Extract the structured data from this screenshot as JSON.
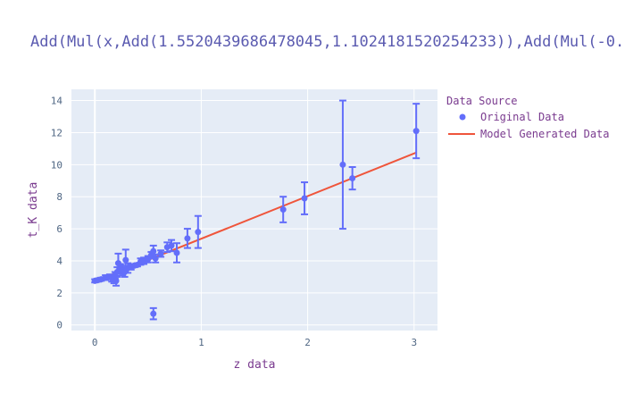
{
  "chart_data": {
    "type": "scatter",
    "title": "Add(Mul(x,Add(1.5520439686478045,1.1024181520254233)),Add(Mul(-0.",
    "xlabel": "z data",
    "ylabel": "t_K data",
    "xlim": [
      -0.22,
      3.22
    ],
    "ylim": [
      -0.35,
      14.7
    ],
    "xticks": [
      0,
      1,
      2,
      3
    ],
    "yticks": [
      0,
      2,
      4,
      6,
      8,
      10,
      12,
      14
    ],
    "grid": true,
    "legend": {
      "title": "Data Source",
      "position": "right",
      "entries": [
        "Original Data",
        "Model Generated Data"
      ]
    },
    "series": [
      {
        "name": "Original Data",
        "mode": "markers",
        "color": "#636efa",
        "points": [
          {
            "x": 0.0,
            "y": 2.75,
            "err": 0.1
          },
          {
            "x": 0.03,
            "y": 2.8,
            "err": 0.1
          },
          {
            "x": 0.06,
            "y": 2.85,
            "err": 0.1
          },
          {
            "x": 0.1,
            "y": 2.95,
            "err": 0.15
          },
          {
            "x": 0.14,
            "y": 3.0,
            "err": 0.15
          },
          {
            "x": 0.16,
            "y": 2.9,
            "err": 0.2
          },
          {
            "x": 0.18,
            "y": 2.85,
            "err": 0.25
          },
          {
            "x": 0.19,
            "y": 3.1,
            "err": 0.2
          },
          {
            "x": 0.2,
            "y": 2.75,
            "err": 0.3
          },
          {
            "x": 0.21,
            "y": 3.3,
            "err": 0.3
          },
          {
            "x": 0.22,
            "y": 3.85,
            "err": 0.6
          },
          {
            "x": 0.24,
            "y": 3.5,
            "err": 0.3
          },
          {
            "x": 0.26,
            "y": 3.4,
            "err": 0.3
          },
          {
            "x": 0.28,
            "y": 3.3,
            "err": 0.3
          },
          {
            "x": 0.29,
            "y": 4.05,
            "err": 0.65
          },
          {
            "x": 0.31,
            "y": 3.55,
            "err": 0.3
          },
          {
            "x": 0.34,
            "y": 3.6,
            "err": 0.15
          },
          {
            "x": 0.37,
            "y": 3.7,
            "err": 0.1
          },
          {
            "x": 0.4,
            "y": 3.75,
            "err": 0.1
          },
          {
            "x": 0.43,
            "y": 3.95,
            "err": 0.2
          },
          {
            "x": 0.46,
            "y": 4.0,
            "err": 0.2
          },
          {
            "x": 0.5,
            "y": 4.1,
            "err": 0.2
          },
          {
            "x": 0.53,
            "y": 4.35,
            "err": 0.2
          },
          {
            "x": 0.55,
            "y": 4.6,
            "err": 0.35
          },
          {
            "x": 0.55,
            "y": 0.7,
            "err": 0.35
          },
          {
            "x": 0.57,
            "y": 4.15,
            "err": 0.25
          },
          {
            "x": 0.62,
            "y": 4.45,
            "err": 0.2
          },
          {
            "x": 0.68,
            "y": 4.85,
            "err": 0.3
          },
          {
            "x": 0.72,
            "y": 4.95,
            "err": 0.35
          },
          {
            "x": 0.77,
            "y": 4.5,
            "err": 0.6
          },
          {
            "x": 0.87,
            "y": 5.4,
            "err": 0.6
          },
          {
            "x": 0.97,
            "y": 5.8,
            "err": 1.0
          },
          {
            "x": 1.77,
            "y": 7.2,
            "err": 0.8
          },
          {
            "x": 1.97,
            "y": 7.9,
            "err": 1.0
          },
          {
            "x": 2.33,
            "y": 10.0,
            "err": 4.0
          },
          {
            "x": 2.42,
            "y": 9.15,
            "err": 0.7
          },
          {
            "x": 3.02,
            "y": 12.1,
            "err": 1.7
          }
        ]
      },
      {
        "name": "Model Generated Data",
        "mode": "lines",
        "color": "#ef553b",
        "x": [
          0.0,
          3.02
        ],
        "y": [
          2.72,
          10.75
        ]
      }
    ]
  }
}
